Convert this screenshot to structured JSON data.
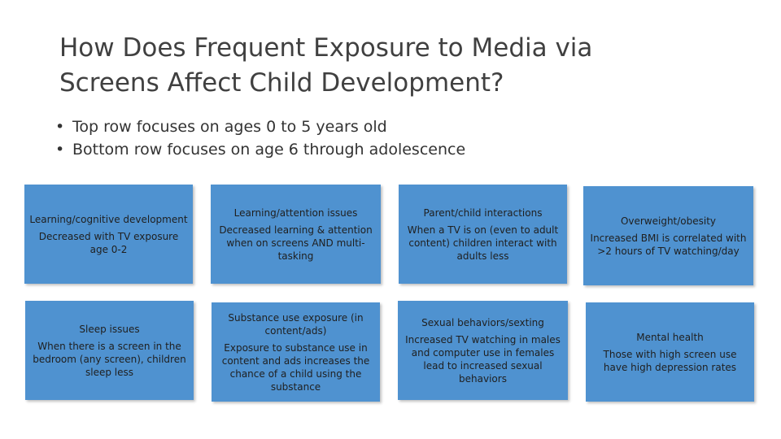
{
  "slide": {
    "title_line1": "How Does Frequent Exposure to Media via",
    "title_line2": "Screens Affect Child Development?",
    "bullets": [
      "Top row focuses on ages 0 to 5 years old",
      "Bottom row focuses on age 6 through adolescence"
    ],
    "bullet_glyph": "•",
    "box_color": "#4f92d0",
    "boxes": [
      {
        "heading": "Learning/cognitive development",
        "text": "Decreased with TV exposure age 0-2"
      },
      {
        "heading": "Learning/attention issues",
        "text": "Decreased learning & attention when on screens AND multi-tasking"
      },
      {
        "heading": "Parent/child interactions",
        "text": "When a TV is on (even to adult content) children interact with adults less"
      },
      {
        "heading": "Overweight/obesity",
        "text": "Increased BMI is correlated with >2 hours of TV watching/day"
      },
      {
        "heading": "Sleep issues",
        "text": "When there is a screen in the bedroom (any screen), children sleep less"
      },
      {
        "heading": "Substance use exposure (in content/ads)",
        "text": "Exposure to substance use in content and ads increases the chance of a child using the substance"
      },
      {
        "heading": "Sexual behaviors/sexting",
        "text": "Increased TV watching in males and computer use in females lead to increased sexual behaviors"
      },
      {
        "heading": "Mental health",
        "text": "Those with high screen use have high depression rates"
      }
    ]
  }
}
